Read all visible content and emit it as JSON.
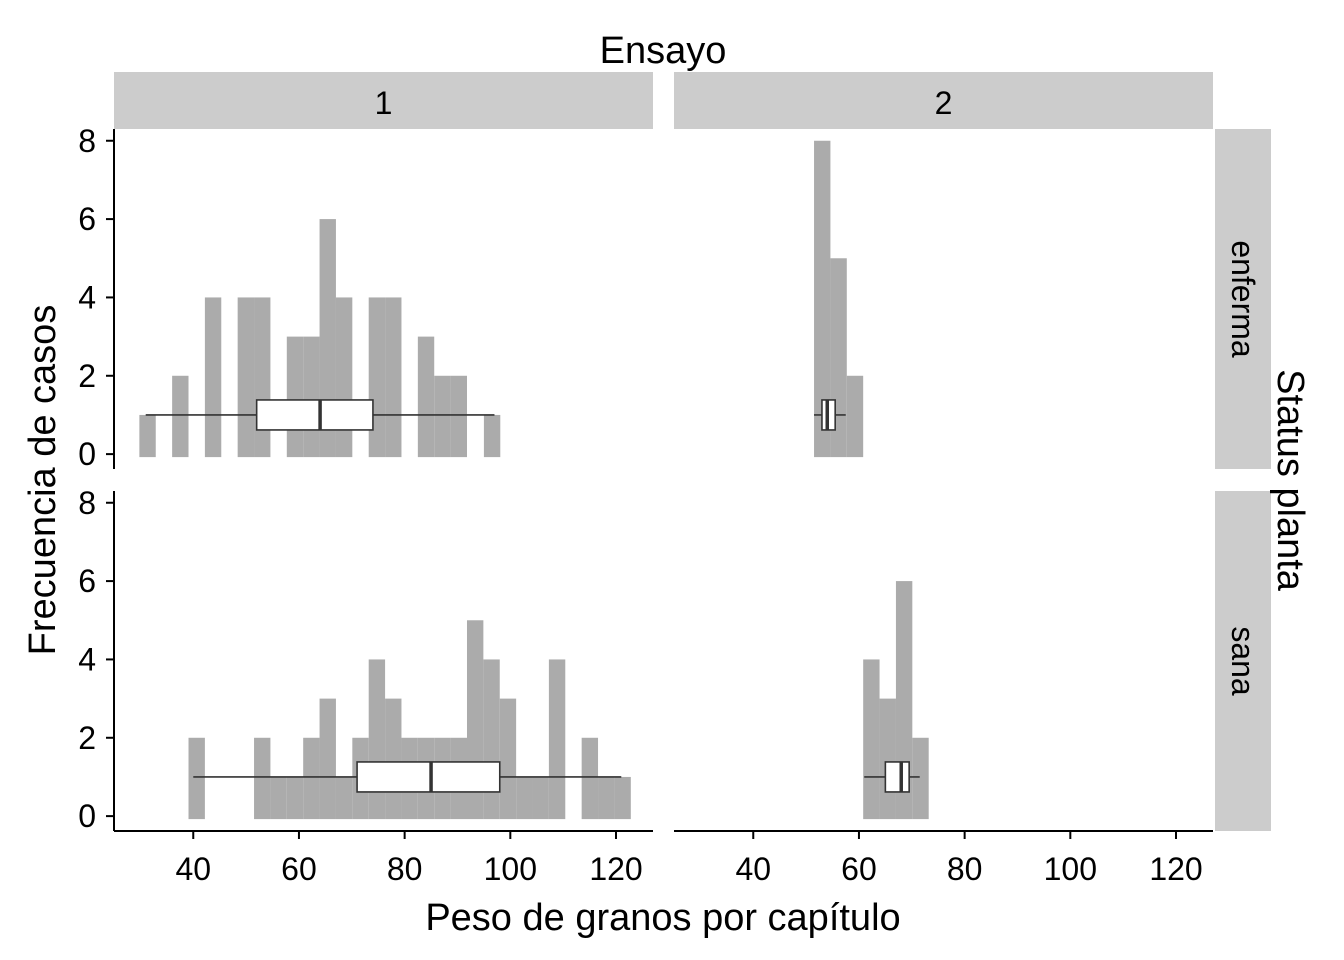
{
  "chart_data": {
    "type": "histogram",
    "title": "Ensayo",
    "xlabel": "Peso de granos por capítulo",
    "ylabel": "Frecuencia de casos",
    "row_facet_label": "Status planta",
    "xlim": [
      25,
      127
    ],
    "ylim": [
      0,
      8.3
    ],
    "x_ticks": [
      40,
      60,
      80,
      100,
      120
    ],
    "y_ticks": [
      0,
      2,
      4,
      6,
      8
    ],
    "bin_width": 3.1,
    "bar_color": "#ababab",
    "box_fill": "#ffffff",
    "box_y": 1,
    "columns": [
      "1",
      "2"
    ],
    "rows": [
      "enferma",
      "sana"
    ],
    "panels": [
      {
        "ensayo": "1",
        "status": "enferma",
        "bins": [
          [
            29.8,
            1
          ],
          [
            36.0,
            2
          ],
          [
            42.2,
            4
          ],
          [
            48.4,
            4
          ],
          [
            51.5,
            4
          ],
          [
            57.7,
            3
          ],
          [
            60.8,
            3
          ],
          [
            63.9,
            6
          ],
          [
            67.0,
            4
          ],
          [
            73.2,
            4
          ],
          [
            76.3,
            4
          ],
          [
            82.5,
            3
          ],
          [
            85.6,
            2
          ],
          [
            88.7,
            2
          ],
          [
            95.0,
            1
          ]
        ],
        "box": {
          "min": 31,
          "q1": 52,
          "median": 64,
          "q3": 74,
          "max": 97
        }
      },
      {
        "ensayo": "2",
        "status": "enferma",
        "bins": [
          [
            51.5,
            8
          ],
          [
            54.6,
            5
          ],
          [
            57.7,
            2
          ]
        ],
        "box": {
          "min": 51.5,
          "q1": 53,
          "median": 54,
          "q3": 55.5,
          "max": 57.5
        }
      },
      {
        "ensayo": "1",
        "status": "sana",
        "bins": [
          [
            39.1,
            2
          ],
          [
            51.5,
            2
          ],
          [
            54.6,
            1
          ],
          [
            57.7,
            1
          ],
          [
            60.8,
            2
          ],
          [
            63.9,
            3
          ],
          [
            67.0,
            1
          ],
          [
            70.1,
            2
          ],
          [
            73.2,
            4
          ],
          [
            76.3,
            3
          ],
          [
            79.4,
            2
          ],
          [
            82.5,
            2
          ],
          [
            85.6,
            2
          ],
          [
            88.7,
            2
          ],
          [
            91.8,
            5
          ],
          [
            94.9,
            4
          ],
          [
            98.0,
            3
          ],
          [
            101.1,
            1
          ],
          [
            104.2,
            1
          ],
          [
            107.3,
            4
          ],
          [
            113.5,
            2
          ],
          [
            116.6,
            1
          ],
          [
            119.7,
            1
          ]
        ],
        "box": {
          "min": 40,
          "q1": 71,
          "median": 85,
          "q3": 98,
          "max": 121
        }
      },
      {
        "ensayo": "2",
        "status": "sana",
        "bins": [
          [
            60.8,
            4
          ],
          [
            63.9,
            3
          ],
          [
            67.0,
            6
          ],
          [
            70.1,
            2
          ]
        ],
        "box": {
          "min": 61,
          "q1": 65,
          "median": 68,
          "q3": 69.5,
          "max": 71.5
        }
      }
    ]
  }
}
